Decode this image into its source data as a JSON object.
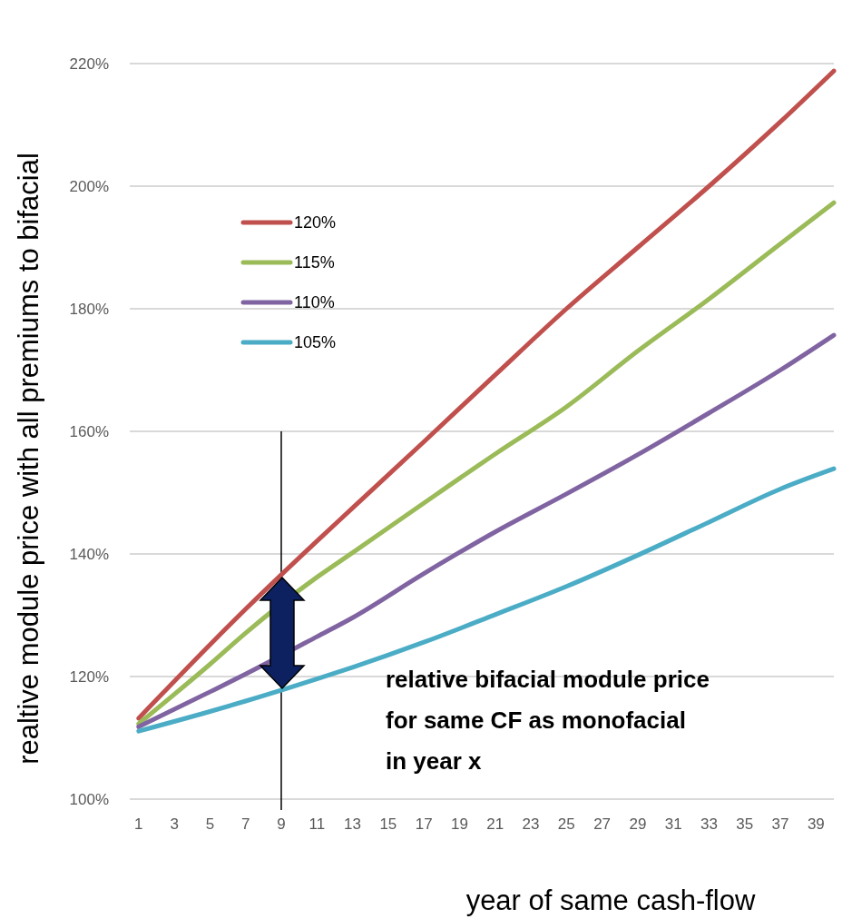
{
  "chart_data": {
    "type": "line",
    "xlabel": "year of same cash-flow",
    "ylabel": "realtive module price with all premiums to bifacial",
    "x": [
      1,
      5,
      7,
      11,
      13,
      17,
      21,
      25,
      29,
      33,
      37,
      40
    ],
    "series": [
      {
        "name": "120%",
        "color": "#c0504d",
        "values": [
          113.2,
          125.2,
          131.0,
          142.1,
          147.5,
          158.3,
          169.2,
          180.0,
          190.0,
          200.0,
          210.5,
          218.8
        ]
      },
      {
        "name": "115%",
        "color": "#9bbb59",
        "values": [
          112.3,
          122.0,
          127.1,
          136.2,
          140.2,
          148.3,
          156.3,
          164.0,
          173.1,
          181.6,
          190.6,
          197.3
        ]
      },
      {
        "name": "110%",
        "color": "#8064a2",
        "values": [
          111.8,
          117.5,
          120.4,
          126.5,
          129.6,
          136.8,
          143.6,
          149.8,
          156.2,
          163.0,
          170.0,
          175.7
        ]
      },
      {
        "name": "105%",
        "color": "#4bacc6",
        "values": [
          111.1,
          114.3,
          116.0,
          119.6,
          121.5,
          125.6,
          130.1,
          134.7,
          139.8,
          145.2,
          150.6,
          153.9
        ]
      }
    ],
    "xlim": [
      0.5,
      40
    ],
    "xticks": [
      1,
      3,
      5,
      7,
      9,
      11,
      13,
      15,
      17,
      19,
      21,
      23,
      25,
      27,
      29,
      31,
      33,
      35,
      37,
      39
    ],
    "ylim": [
      100,
      220
    ],
    "yticks": [
      {
        "value": 100,
        "label": "100%"
      },
      {
        "value": 120,
        "label": "120%"
      },
      {
        "value": 140,
        "label": "140%"
      },
      {
        "value": 160,
        "label": "160%"
      },
      {
        "value": 180,
        "label": "180%"
      },
      {
        "value": 200,
        "label": "200%"
      },
      {
        "value": 220,
        "label": "220%"
      }
    ],
    "grid": "y",
    "legend": "top left",
    "marker": "none",
    "line_style": "solid",
    "ref_lines": [
      {
        "axis": "x",
        "value": 9,
        "color": "#000000"
      }
    ],
    "annotations": [
      "relative bifacial module price for same CF as monofacial in year x"
    ]
  }
}
